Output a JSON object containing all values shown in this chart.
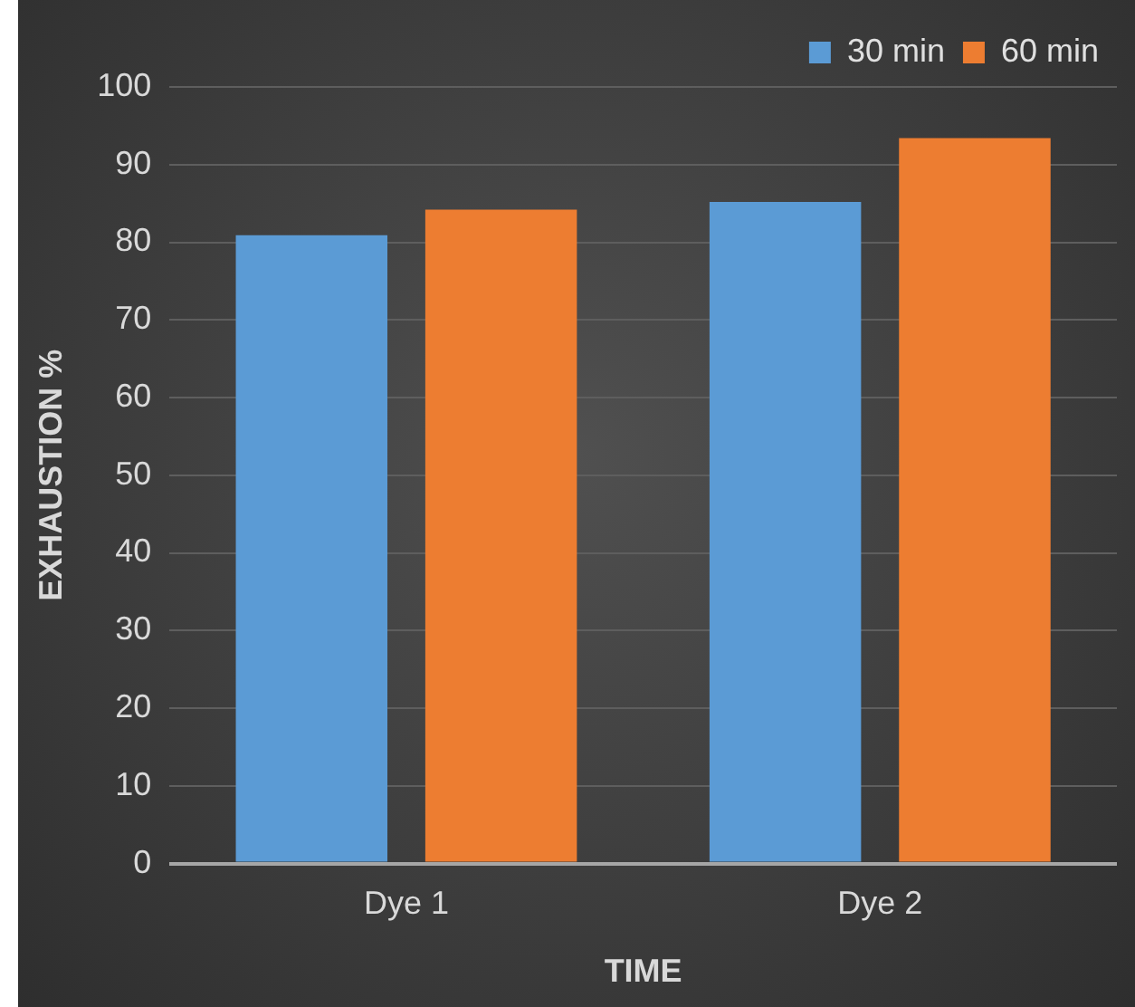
{
  "chart_data": {
    "type": "bar",
    "xlabel": "TIME",
    "ylabel": "EXHAUSTION %",
    "categories": [
      "Dye 1",
      "Dye 2"
    ],
    "series": [
      {
        "name": "30 min",
        "color": "#5b9bd5",
        "values": [
          80.9,
          85.2
        ]
      },
      {
        "name": "60 min",
        "color": "#ed7d31",
        "values": [
          84.2,
          93.4
        ]
      }
    ],
    "ylim": [
      0,
      100
    ],
    "yticks": [
      0,
      10,
      20,
      30,
      40,
      50,
      60,
      70,
      80,
      90,
      100
    ],
    "grid": "y",
    "legend": "top right"
  }
}
